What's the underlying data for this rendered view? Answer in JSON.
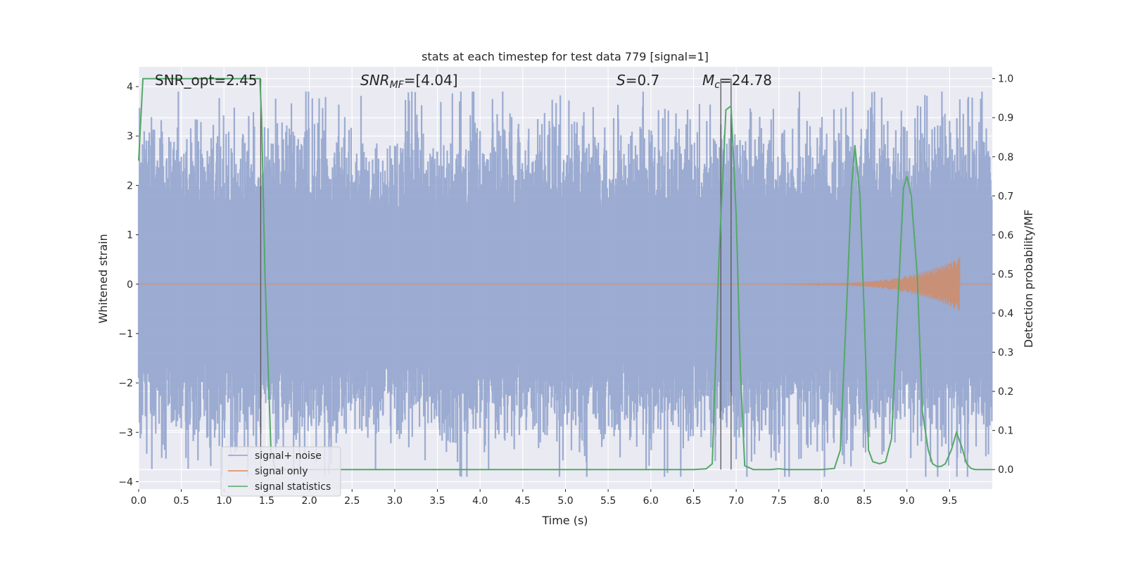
{
  "chart_data": {
    "type": "line",
    "title": "stats at each timestep for test data 779 [signal=1]",
    "xlabel": "Time (s)",
    "ylabel_left": "Whitened strain",
    "ylabel_right": "Detection probability/MF",
    "xlim": [
      0.0,
      10.0
    ],
    "ylim_left": [
      -4.15,
      4.4
    ],
    "ylim_right": [
      -0.05,
      1.03
    ],
    "grid": true,
    "legend_position": "lower-left",
    "x_ticks": [
      "0.0",
      "0.5",
      "1.0",
      "1.5",
      "2.0",
      "2.5",
      "3.0",
      "3.5",
      "4.0",
      "4.5",
      "5.0",
      "5.5",
      "6.0",
      "6.5",
      "7.0",
      "7.5",
      "8.0",
      "8.5",
      "9.0",
      "9.5"
    ],
    "x_tick_values": [
      0.0,
      0.5,
      1.0,
      1.5,
      2.0,
      2.5,
      3.0,
      3.5,
      4.0,
      4.5,
      5.0,
      5.5,
      6.0,
      6.5,
      7.0,
      7.5,
      8.0,
      8.5,
      9.0,
      9.5
    ],
    "y_left_ticks": [
      "4",
      "3",
      "2",
      "1",
      "0",
      "−1",
      "−2",
      "−3",
      "−4"
    ],
    "y_left_tick_values": [
      4,
      3,
      2,
      1,
      0,
      -1,
      -2,
      -3,
      -4
    ],
    "y_right_ticks": [
      "1.0",
      "0.9",
      "0.8",
      "0.7",
      "0.6",
      "0.5",
      "0.4",
      "0.3",
      "0.2",
      "0.1",
      "0.0"
    ],
    "y_right_tick_values": [
      1.0,
      0.9,
      0.8,
      0.7,
      0.6,
      0.5,
      0.4,
      0.3,
      0.2,
      0.1,
      0.0
    ],
    "annotations": {
      "snr_opt": "SNR_opt=2.45",
      "snr_mf_base": "SNR",
      "snr_mf_sub": "MF",
      "snr_mf_value": "=[4.04]",
      "s_label": "S",
      "s_value": "=0.7",
      "mc_base": "M",
      "mc_sub": "c",
      "mc_value": "=24.78"
    },
    "vertical_lines_x": [
      1.43,
      6.82,
      6.94
    ],
    "noise_band": {
      "typical_abs": 1.5,
      "max_abs": 3.9,
      "samples_per_second": 200
    },
    "signal_only": {
      "start": 6.7,
      "peak_time": 9.62,
      "peak_amplitude": 0.55
    },
    "series": [
      {
        "name": "signal+ noise",
        "color": "#8da0cb"
      },
      {
        "name": "signal only",
        "color": "#dd8452"
      },
      {
        "name": "signal statistics",
        "color": "#55a868",
        "x": [
          0.0,
          0.05,
          0.1,
          0.2,
          0.5,
          1.0,
          1.3,
          1.42,
          1.44,
          1.48,
          1.55,
          1.6,
          1.7,
          2.0,
          3.0,
          4.0,
          5.0,
          6.0,
          6.5,
          6.65,
          6.72,
          6.8,
          6.88,
          6.94,
          7.0,
          7.05,
          7.1,
          7.2,
          7.4,
          7.5,
          7.6,
          7.8,
          8.0,
          8.15,
          8.22,
          8.3,
          8.35,
          8.39,
          8.45,
          8.5,
          8.55,
          8.6,
          8.68,
          8.75,
          8.82,
          8.9,
          8.96,
          9.0,
          9.05,
          9.12,
          9.18,
          9.25,
          9.3,
          9.35,
          9.4,
          9.45,
          9.52,
          9.58,
          9.64,
          9.7,
          9.75,
          9.8,
          9.88,
          9.95,
          10.0
        ],
        "y": [
          0.79,
          1.0,
          1.0,
          1.0,
          1.0,
          1.0,
          1.0,
          1.0,
          0.9,
          0.5,
          0.05,
          0.0,
          0.0,
          0.0,
          0.0,
          0.0,
          0.0,
          0.0,
          0.0,
          0.002,
          0.015,
          0.55,
          0.92,
          0.93,
          0.65,
          0.25,
          0.01,
          0.0,
          0.0,
          0.002,
          0.0,
          0.0,
          0.0,
          0.003,
          0.05,
          0.45,
          0.72,
          0.83,
          0.7,
          0.4,
          0.05,
          0.02,
          0.015,
          0.02,
          0.08,
          0.45,
          0.72,
          0.75,
          0.7,
          0.5,
          0.15,
          0.05,
          0.015,
          0.008,
          0.008,
          0.015,
          0.05,
          0.095,
          0.06,
          0.015,
          0.003,
          0.0,
          0.0,
          0.0,
          0.0
        ]
      }
    ]
  }
}
